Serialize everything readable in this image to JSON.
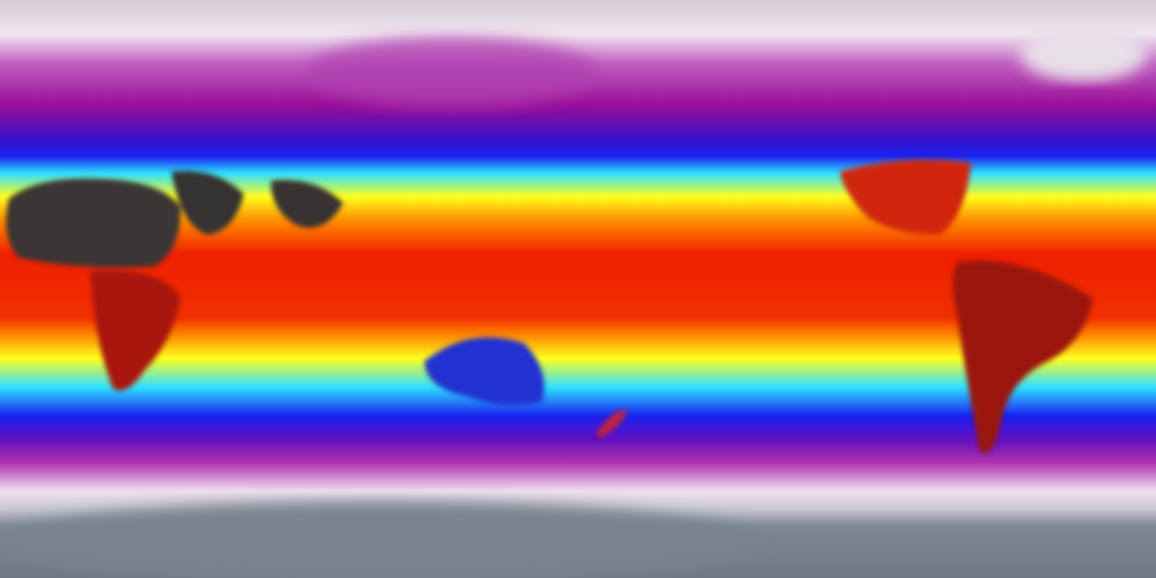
{
  "map": {
    "kind": "global temperature field",
    "projection": "equirectangular",
    "colors": {
      "polar_north": "#e6dbe6",
      "cold_magenta": "#a0109a",
      "blue": "#1a10e0",
      "cyan": "#30e8ff",
      "yellow": "#ffff10",
      "orange": "#ff8000",
      "red": "#ee1a00",
      "hot_dark": "#3a3a3a",
      "antarctica": "#7f8895"
    }
  }
}
